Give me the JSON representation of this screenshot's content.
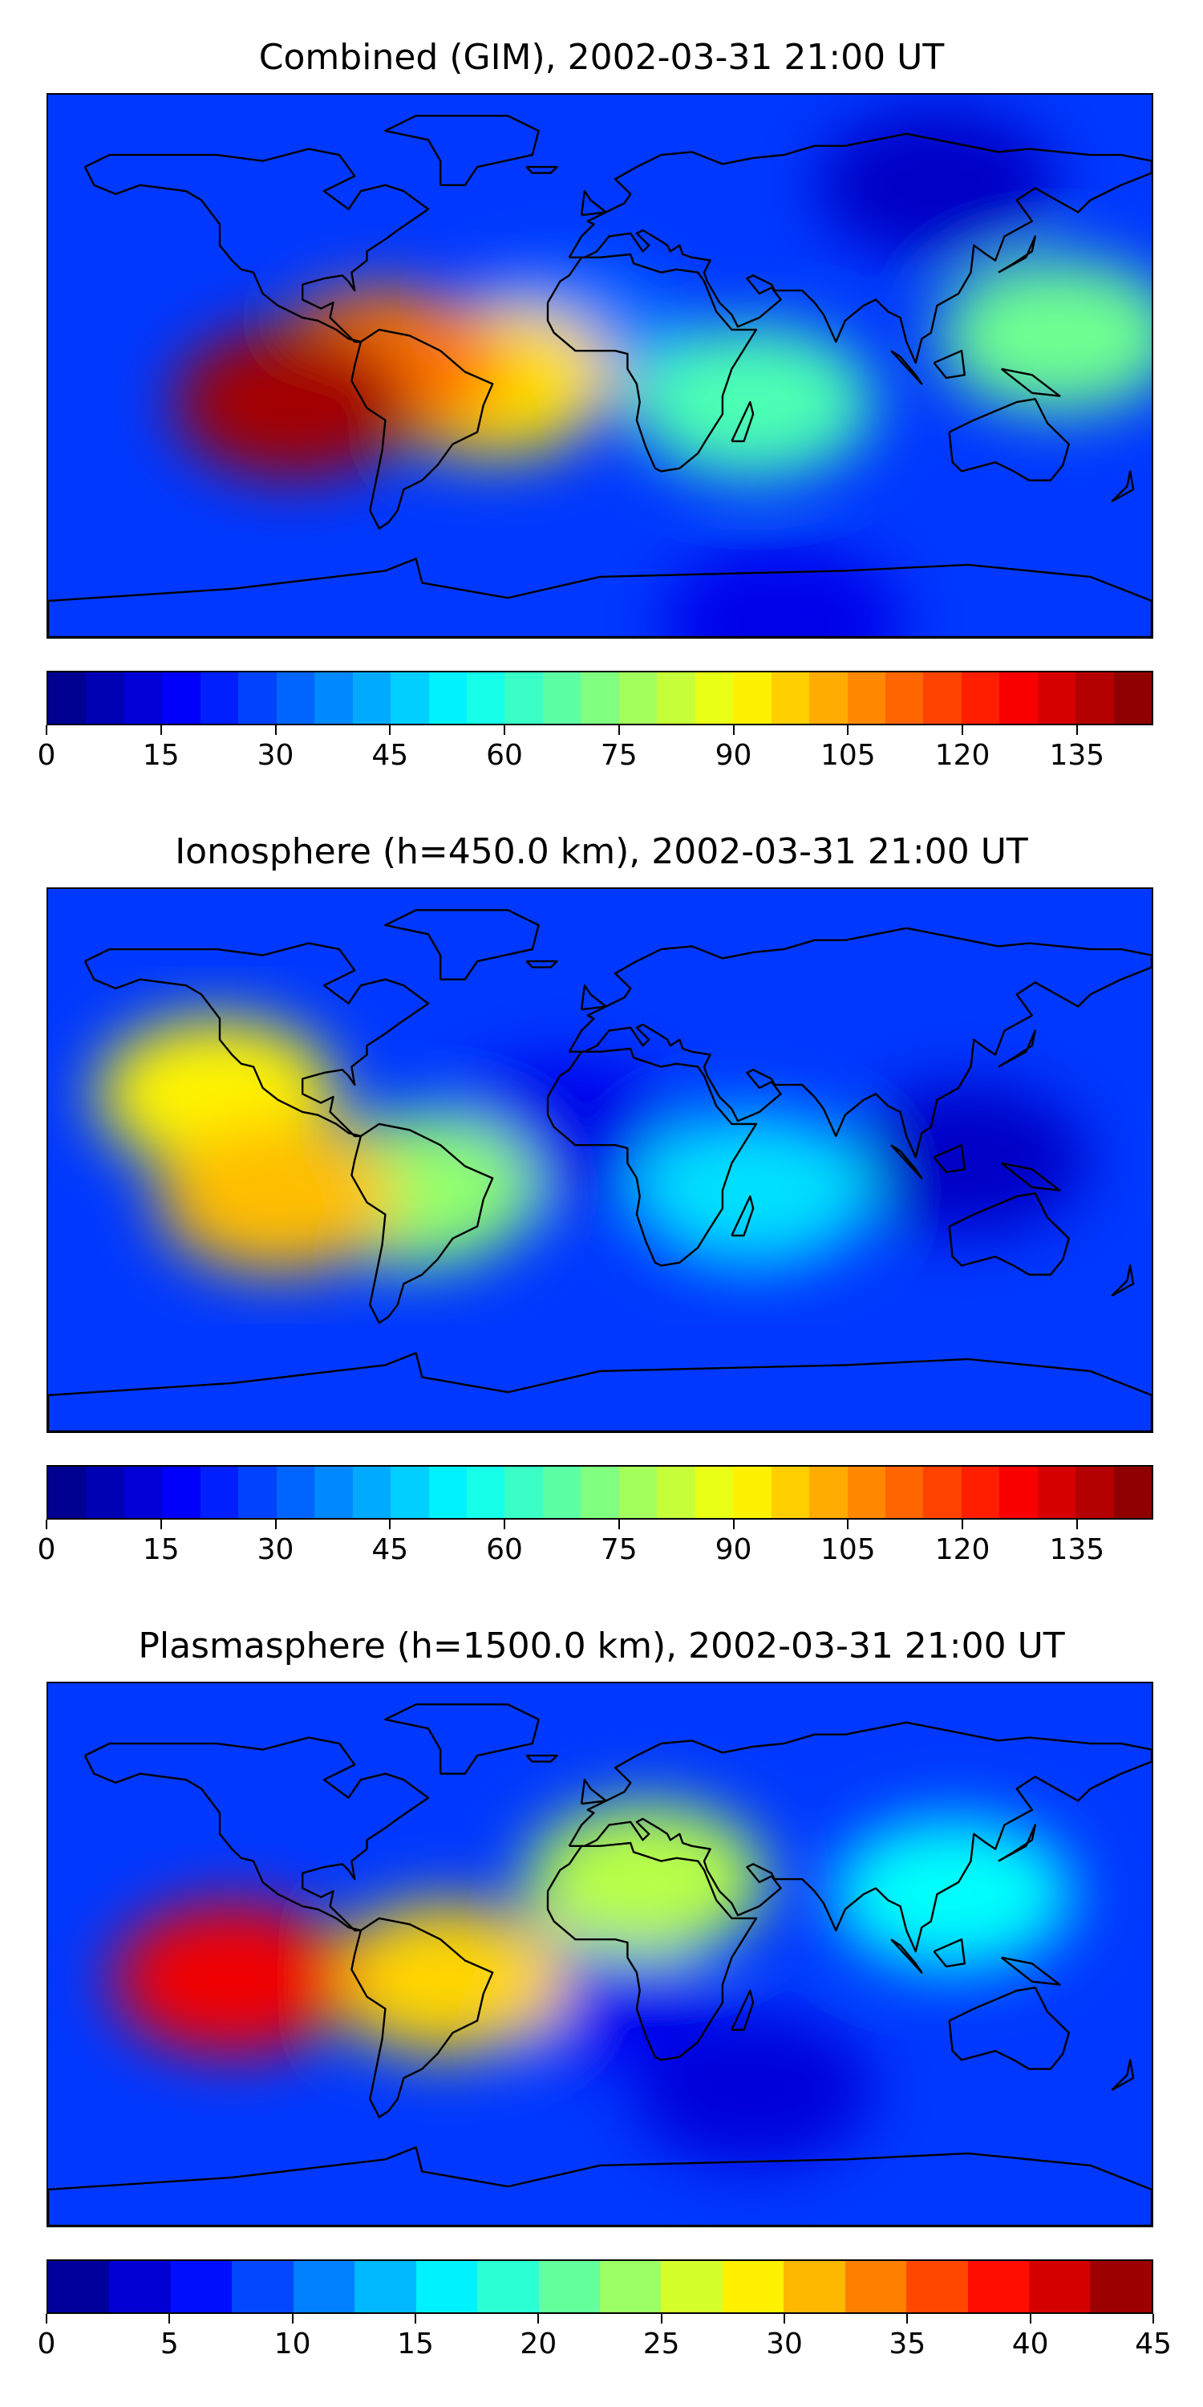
{
  "chart_data": [
    {
      "type": "heatmap",
      "title": "Combined (GIM), 2002-03-31 21:00 UT",
      "colorbar": {
        "ticks": [
          0,
          15,
          30,
          45,
          60,
          75,
          90,
          105,
          120,
          135
        ],
        "range": [
          0,
          145
        ],
        "levels": 29
      },
      "colormap": "jet",
      "features": [
        {
          "region": "eastern Pacific / west of South America",
          "lon": -100,
          "lat": -12,
          "value": 140
        },
        {
          "region": "Peru / Ecuador",
          "lon": -70,
          "lat": 0,
          "value": 110
        },
        {
          "region": "South Atlantic crest",
          "lon": -35,
          "lat": -5,
          "value": 95
        },
        {
          "region": "west Africa hole",
          "lon": -12,
          "lat": 8,
          "value": 35
        },
        {
          "region": "southern Africa / Indian Ocean",
          "lon": 50,
          "lat": -12,
          "value": 65
        },
        {
          "region": "western Pacific",
          "lon": 150,
          "lat": 10,
          "value": 70
        },
        {
          "region": "Siberia minimum",
          "lon": 110,
          "lat": 60,
          "value": 10
        },
        {
          "region": "Antarctica",
          "lon": 60,
          "lat": -85,
          "value": 15
        }
      ]
    },
    {
      "type": "heatmap",
      "title": "Ionosphere  (h=450.0 km), 2002-03-31 21:00 UT",
      "colorbar": {
        "ticks": [
          0,
          15,
          30,
          45,
          60,
          75,
          90,
          105,
          120,
          135
        ],
        "range": [
          0,
          145
        ],
        "levels": 29
      },
      "colormap": "jet",
      "features": [
        {
          "region": "north-eastern Pacific crest",
          "lon": -125,
          "lat": 22,
          "value": 92
        },
        {
          "region": "south-eastern Pacific crest",
          "lon": -105,
          "lat": -12,
          "value": 100
        },
        {
          "region": "South America",
          "lon": -60,
          "lat": -10,
          "value": 75
        },
        {
          "region": "west Africa hole",
          "lon": -12,
          "lat": 8,
          "value": 15
        },
        {
          "region": "Indian Ocean",
          "lon": 50,
          "lat": -10,
          "value": 50
        },
        {
          "region": "south-east Asia minimum",
          "lon": 120,
          "lat": 0,
          "value": 10
        }
      ]
    },
    {
      "type": "heatmap",
      "title": "Plasmasphere (h=1500.0 km), 2002-03-31 21:00 UT",
      "colorbar": {
        "ticks": [
          0,
          5,
          10,
          15,
          20,
          25,
          30,
          35,
          40,
          45
        ],
        "range": [
          0,
          45
        ],
        "levels": 18
      },
      "colormap": "jet",
      "features": [
        {
          "region": "south-eastern Pacific maximum",
          "lon": -120,
          "lat": -8,
          "value": 40
        },
        {
          "region": "South America",
          "lon": -50,
          "lat": -8,
          "value": 30
        },
        {
          "region": "North Africa",
          "lon": 15,
          "lat": 25,
          "value": 25
        },
        {
          "region": "south-east Asia",
          "lon": 115,
          "lat": 20,
          "value": 17
        },
        {
          "region": "south Atlantic minimum",
          "lon": -5,
          "lat": -10,
          "value": 5
        },
        {
          "region": "southern ocean",
          "lon": 50,
          "lat": -45,
          "value": 4
        }
      ]
    }
  ]
}
